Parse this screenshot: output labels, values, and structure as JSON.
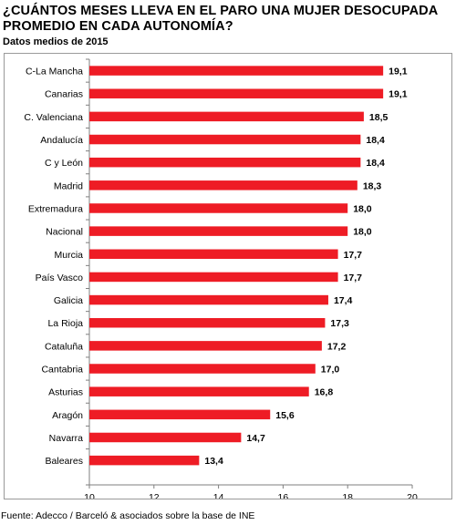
{
  "header": {
    "title": "¿CUÁNTOS MESES LLEVA EN EL PARO UNA MUJER DESOCUPADA PROMEDIO EN CADA AUTONOMÍA?",
    "subtitle": "Datos medios de 2015"
  },
  "footer": {
    "source": "Fuente: Adecco / Barceló & asociados sobre la base de INE"
  },
  "chart_data": {
    "type": "bar",
    "orientation": "horizontal",
    "title": "¿CUÁNTOS MESES LLEVA EN EL PARO UNA MUJER DESOCUPADA PROMEDIO EN CADA AUTONOMÍA?",
    "subtitle": "Datos medios de 2015",
    "categories": [
      "C-La Mancha",
      "Canarias",
      "C. Valenciana",
      "Andalucía",
      "C y León",
      "Madrid",
      "Extremadura",
      "Nacional",
      "Murcia",
      "País Vasco",
      "Galicia",
      "La Rioja",
      "Cataluña",
      "Cantabria",
      "Asturias",
      "Aragón",
      "Navarra",
      "Baleares"
    ],
    "values": [
      19.1,
      19.1,
      18.5,
      18.4,
      18.4,
      18.3,
      18.0,
      18.0,
      17.7,
      17.7,
      17.4,
      17.3,
      17.2,
      17.0,
      16.8,
      15.6,
      14.7,
      13.4
    ],
    "data_labels": [
      "19,1",
      "19,1",
      "18,5",
      "18,4",
      "18,4",
      "18,3",
      "18,0",
      "18,0",
      "17,7",
      "17,7",
      "17,4",
      "17,3",
      "17,2",
      "17,0",
      "16,8",
      "15,6",
      "14,7",
      "13,4"
    ],
    "xlim": [
      10,
      20
    ],
    "xticks": [
      10,
      12,
      14,
      16,
      18,
      20
    ],
    "xtick_labels": [
      "10",
      "12",
      "14",
      "16",
      "18",
      "20"
    ],
    "xlabel": "",
    "ylabel": "",
    "grid": false,
    "legend": "none",
    "bar_color": "#ee1c25"
  }
}
